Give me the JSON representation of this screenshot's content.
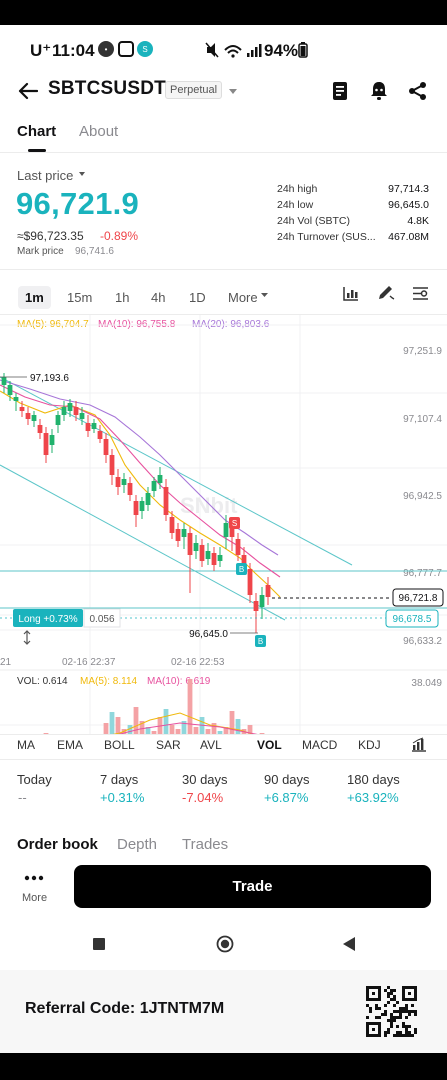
{
  "status_bar": {
    "carrier": "U⁺",
    "time": "11:04",
    "battery": "94%"
  },
  "header": {
    "title": "SBTCSUSDT",
    "badge": "Perpetual"
  },
  "tabs": [
    "Chart",
    "About"
  ],
  "price": {
    "label": "Last price",
    "last": "96,721.9",
    "usd": "≈$96,723.35",
    "change": "-0.89%",
    "mark_label": "Mark price",
    "mark": "96,741.6"
  },
  "stats": [
    {
      "label": "24h high",
      "value": "97,714.3"
    },
    {
      "label": "24h low",
      "value": "96,645.0"
    },
    {
      "label": "24h Vol (SBTC)",
      "value": "4.8K"
    },
    {
      "label": "24h Turnover (SUS...",
      "value": "467.08M"
    }
  ],
  "timeframes": [
    "1m",
    "15m",
    "1h",
    "4h",
    "1D",
    "More"
  ],
  "ma_legend": {
    "ma5": "MA(5): 96,704.7",
    "ma10": "MA(10): 96,755.8",
    "ma20": "MA(20): 96,803.6"
  },
  "colors": {
    "up": "#20b26c",
    "down": "#ef454a",
    "teal": "#1ab3bd",
    "ma5": "#f0b90b",
    "ma10": "#e7519e",
    "ma20": "#a776d8"
  },
  "chart": {
    "y_ticks": [
      "97,251.9",
      "97,107.4",
      "96,942.5",
      "96,777.7",
      "96,633.2"
    ],
    "high_label": "97,193.6",
    "low_label": "96,645.0",
    "current_price": "96,721.8",
    "mark_tag": "96,678.5",
    "position_tag": "Long +0.73%",
    "position_qty": "0.056",
    "x_labels": [
      "21",
      "02-16 22:37",
      "02-16 22:53"
    ],
    "watermark": "SNbit",
    "marker_sell": "S",
    "marker_buy": "B"
  },
  "volume": {
    "vol": "VOL: 0.614",
    "ma5": "MA(5): 8.114",
    "ma10": "MA(10): 6.619",
    "max": "38.049"
  },
  "indicators": [
    "MA",
    "EMA",
    "BOLL",
    "SAR",
    "AVL",
    "VOL",
    "MACD",
    "KDJ"
  ],
  "performance": [
    {
      "label": "Today",
      "value": "--"
    },
    {
      "label": "7 days",
      "value": "+0.31%"
    },
    {
      "label": "30 days",
      "value": "-7.04%"
    },
    {
      "label": "90 days",
      "value": "+6.87%"
    },
    {
      "label": "180 days",
      "value": "+63.92%"
    }
  ],
  "bottom_tabs": [
    "Order book",
    "Depth",
    "Trades"
  ],
  "actions": {
    "more": "More",
    "trade": "Trade"
  },
  "referral": {
    "text": "Referral Code: 1JTNTM7M"
  }
}
